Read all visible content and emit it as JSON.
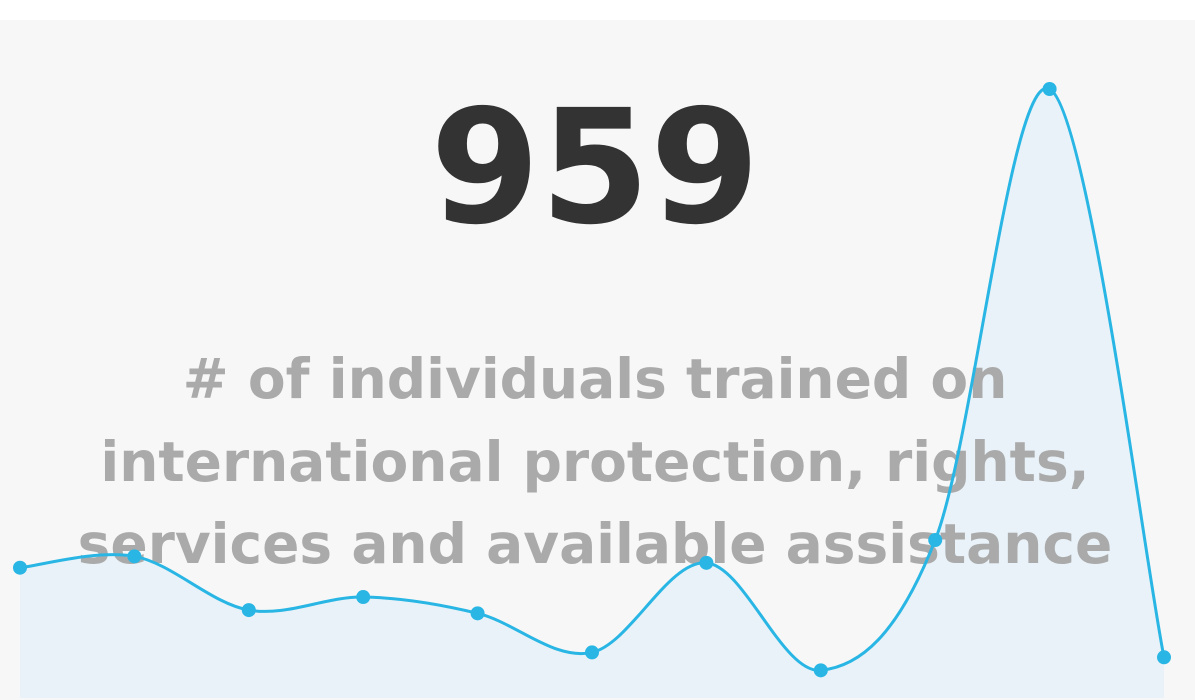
{
  "chart_data": {
    "type": "line",
    "kpi": 959,
    "label": [
      "# of individuals trained on",
      "international protection, rights,",
      "services and available assistance"
    ],
    "values": [
      80,
      87,
      54,
      62,
      52,
      28,
      83,
      17,
      97,
      374,
      25
    ],
    "ylim": [
      0,
      374
    ],
    "color": "#29b6e4",
    "fill": "#e6f1f7"
  }
}
